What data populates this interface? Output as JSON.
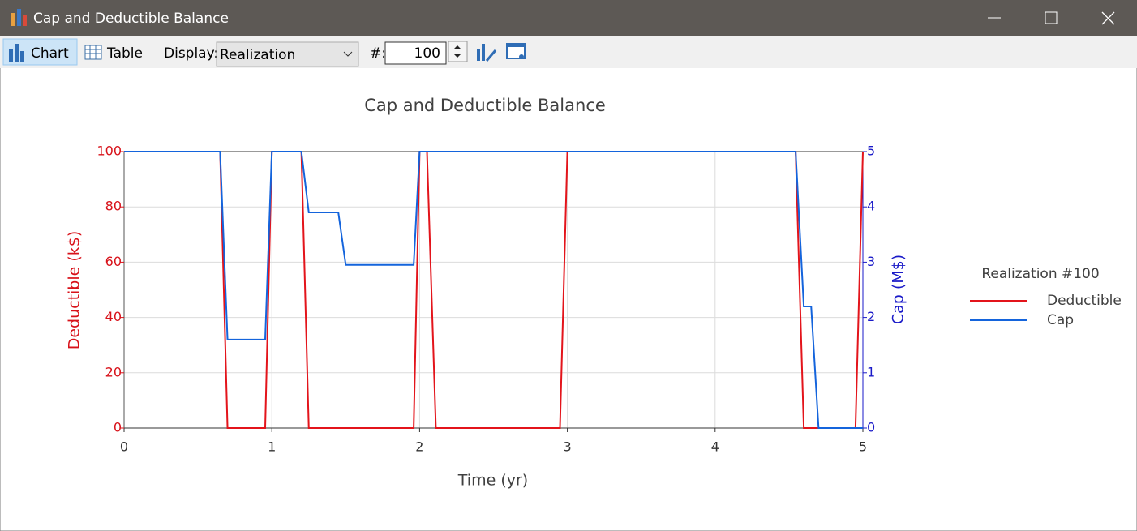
{
  "window": {
    "title": "Cap and Deductible Balance"
  },
  "toolbar": {
    "chart": "Chart",
    "table": "Table",
    "display_label": "Display:",
    "display_value": "Realization",
    "number_label": "#:",
    "number_value": "100"
  },
  "chart_data": {
    "type": "line",
    "title": "Cap and Deductible Balance",
    "x_label": "Time (yr)",
    "y_label": "Deductible (k$)",
    "y2_label": "Cap (M$)",
    "legend_title": "Realization #100",
    "legend": "right",
    "grid": true,
    "xlim": [
      0,
      5
    ],
    "xticks": [
      0,
      1,
      2,
      3,
      4,
      5
    ],
    "ylim": [
      0,
      100
    ],
    "yticks": [
      0,
      20,
      40,
      60,
      80,
      100
    ],
    "y2lim": [
      0,
      5
    ],
    "y2ticks": [
      0,
      1,
      2,
      3,
      4,
      5
    ],
    "series": [
      {
        "name": "Deductible",
        "color": "#e3141b",
        "x": [
          0,
          0.65,
          0.7,
          0.955,
          1.0,
          1.2,
          1.25,
          1.96,
          2.0,
          2.05,
          2.11,
          2.95,
          3.0,
          4.545,
          4.6,
          4.95,
          5.0
        ],
        "values": [
          100,
          100,
          0,
          0,
          100,
          100,
          0,
          0,
          100,
          100,
          0,
          0,
          100,
          100,
          0,
          0,
          100
        ]
      },
      {
        "name": "Cap",
        "color": "#1464dc",
        "axis": "y2",
        "x": [
          0,
          0.65,
          0.7,
          0.955,
          1.0,
          1.2,
          1.25,
          1.45,
          1.5,
          1.96,
          2.0,
          4.545,
          4.6,
          4.65,
          4.7,
          5.0
        ],
        "values": [
          5,
          5,
          1.6,
          1.6,
          5,
          5,
          3.9,
          3.9,
          2.95,
          2.95,
          5,
          5,
          2.2,
          2.2,
          0,
          0
        ]
      }
    ]
  }
}
